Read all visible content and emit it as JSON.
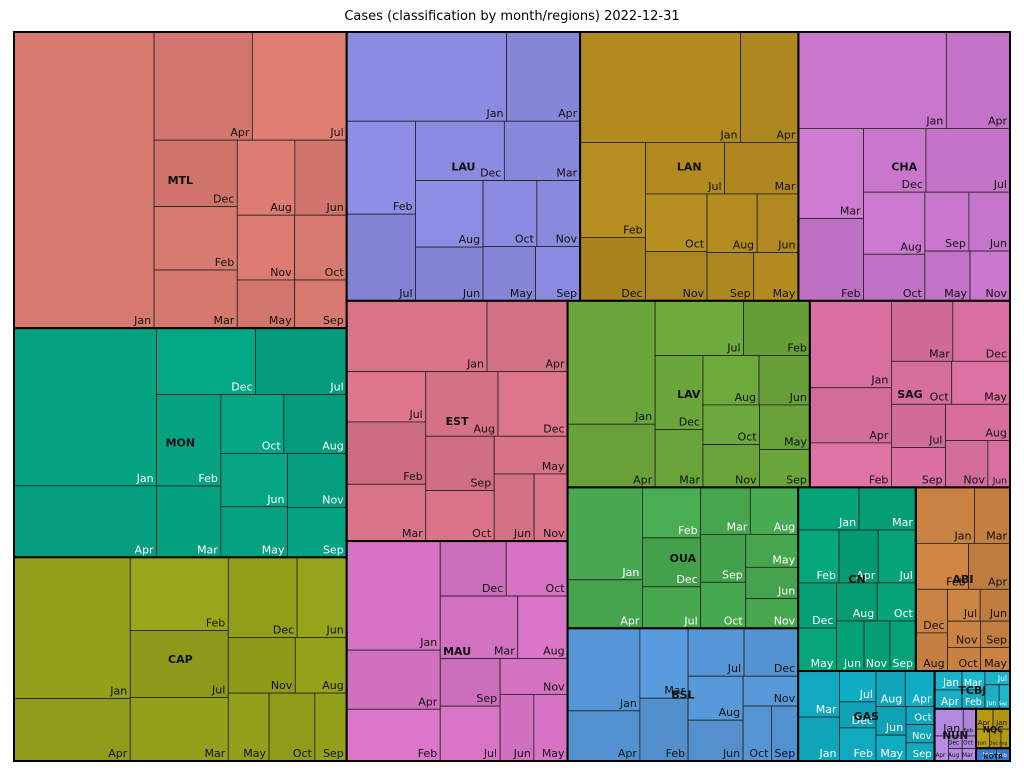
{
  "chart_data": {
    "type": "treemap",
    "title": "Cases (classification by month/regions)  2022-12-31",
    "regions": [
      {
        "name": "MTL",
        "color": "#d97a70",
        "months": [
          {
            "m": "Jan",
            "v": 4800
          },
          {
            "m": "Apr",
            "v": 1230
          },
          {
            "m": "Jul",
            "v": 1180
          },
          {
            "m": "Dec",
            "v": 640
          },
          {
            "m": "Feb",
            "v": 610
          },
          {
            "m": "Mar",
            "v": 560
          },
          {
            "m": "Aug",
            "v": 500
          },
          {
            "m": "Jun",
            "v": 450
          },
          {
            "m": "Nov",
            "v": 430
          },
          {
            "m": "Oct",
            "v": 390
          },
          {
            "m": "May",
            "v": 320
          },
          {
            "m": "Sep",
            "v": 290
          }
        ]
      },
      {
        "name": "MON",
        "color": "#05a382",
        "months": [
          {
            "m": "Jan",
            "v": 2600
          },
          {
            "m": "Apr",
            "v": 1180
          },
          {
            "m": "Dec",
            "v": 760
          },
          {
            "m": "Jul",
            "v": 700
          },
          {
            "m": "Feb",
            "v": 680
          },
          {
            "m": "Mar",
            "v": 530
          },
          {
            "m": "Oct",
            "v": 430
          },
          {
            "m": "Aug",
            "v": 430
          },
          {
            "m": "Jun",
            "v": 410
          },
          {
            "m": "May",
            "v": 390
          },
          {
            "m": "Nov",
            "v": 370
          },
          {
            "m": "Sep",
            "v": 340
          }
        ]
      },
      {
        "name": "CAP",
        "color": "#93a11a",
        "months": [
          {
            "m": "Jan",
            "v": 1900
          },
          {
            "m": "Apr",
            "v": 840
          },
          {
            "m": "Feb",
            "v": 830
          },
          {
            "m": "Jul",
            "v": 760
          },
          {
            "m": "Mar",
            "v": 720
          },
          {
            "m": "Dec",
            "v": 640
          },
          {
            "m": "Jun",
            "v": 460
          },
          {
            "m": "Nov",
            "v": 430
          },
          {
            "m": "Aug",
            "v": 330
          },
          {
            "m": "May",
            "v": 320
          },
          {
            "m": "Oct",
            "v": 360
          },
          {
            "m": "Sep",
            "v": 250
          }
        ]
      },
      {
        "name": "LAU",
        "color": "#8a8ae0",
        "months": [
          {
            "m": "Jan",
            "v": 1650
          },
          {
            "m": "Apr",
            "v": 760
          },
          {
            "m": "Feb",
            "v": 740
          },
          {
            "m": "Jul",
            "v": 690
          },
          {
            "m": "Dec",
            "v": 610
          },
          {
            "m": "Mar",
            "v": 520
          },
          {
            "m": "Aug",
            "v": 520
          },
          {
            "m": "Jun",
            "v": 420
          },
          {
            "m": "Oct",
            "v": 410
          },
          {
            "m": "Nov",
            "v": 330
          },
          {
            "m": "May",
            "v": 330
          },
          {
            "m": "Sep",
            "v": 280
          }
        ]
      },
      {
        "name": "MAU",
        "color": "#d673c4",
        "months": [
          {
            "m": "Jan",
            "v": 1180
          },
          {
            "m": "Apr",
            "v": 640
          },
          {
            "m": "Feb",
            "v": 560
          },
          {
            "m": "Dec",
            "v": 420
          },
          {
            "m": "Oct",
            "v": 390
          },
          {
            "m": "Mar",
            "v": 560
          },
          {
            "m": "Aug",
            "v": 360
          },
          {
            "m": "Sep",
            "v": 330
          },
          {
            "m": "Jul",
            "v": 380
          },
          {
            "m": "Nov",
            "v": 280
          },
          {
            "m": "Jun",
            "v": 260
          },
          {
            "m": "May",
            "v": 260
          }
        ]
      },
      {
        "name": "LAN",
        "color": "#b28b20",
        "months": [
          {
            "m": "Jan",
            "v": 2050
          },
          {
            "m": "Apr",
            "v": 740
          },
          {
            "m": "Feb",
            "v": 720
          },
          {
            "m": "Dec",
            "v": 480
          },
          {
            "m": "Jul",
            "v": 470
          },
          {
            "m": "Mar",
            "v": 440
          },
          {
            "m": "Oct",
            "v": 410
          },
          {
            "m": "Nov",
            "v": 350
          },
          {
            "m": "Aug",
            "v": 340
          },
          {
            "m": "Jun",
            "v": 280
          },
          {
            "m": "Sep",
            "v": 260
          },
          {
            "m": "May",
            "v": 250
          }
        ]
      },
      {
        "name": "EST",
        "color": "#d97388",
        "months": [
          {
            "m": "Jan",
            "v": 1150
          },
          {
            "m": "Apr",
            "v": 660
          },
          {
            "m": "Jul",
            "v": 460
          },
          {
            "m": "Feb",
            "v": 570
          },
          {
            "m": "Mar",
            "v": 520
          },
          {
            "m": "Aug",
            "v": 540
          },
          {
            "m": "Dec",
            "v": 520
          },
          {
            "m": "Sep",
            "v": 430
          },
          {
            "m": "Oct",
            "v": 400
          },
          {
            "m": "May",
            "v": 320
          },
          {
            "m": "Jun",
            "v": 310
          },
          {
            "m": "Nov",
            "v": 260
          }
        ]
      },
      {
        "name": "LAV",
        "color": "#6ba63a",
        "months": [
          {
            "m": "Jan",
            "v": 1250
          },
          {
            "m": "Apr",
            "v": 640
          },
          {
            "m": "Jul",
            "v": 560
          },
          {
            "m": "Feb",
            "v": 420
          },
          {
            "m": "Dec",
            "v": 410
          },
          {
            "m": "Mar",
            "v": 320
          },
          {
            "m": "Aug",
            "v": 320
          },
          {
            "m": "Jun",
            "v": 290
          },
          {
            "m": "Oct",
            "v": 260
          },
          {
            "m": "Nov",
            "v": 280
          },
          {
            "m": "May",
            "v": 260
          },
          {
            "m": "Sep",
            "v": 220
          }
        ]
      },
      {
        "name": "CHA",
        "color": "#c877cc",
        "months": [
          {
            "m": "Jan",
            "v": 1650
          },
          {
            "m": "Apr",
            "v": 710
          },
          {
            "m": "Mar",
            "v": 680
          },
          {
            "m": "Feb",
            "v": 620
          },
          {
            "m": "Dec",
            "v": 460
          },
          {
            "m": "Jul",
            "v": 620
          },
          {
            "m": "Aug",
            "v": 440
          },
          {
            "m": "Oct",
            "v": 330
          },
          {
            "m": "Sep",
            "v": 300
          },
          {
            "m": "Jun",
            "v": 280
          },
          {
            "m": "May",
            "v": 260
          },
          {
            "m": "Nov",
            "v": 230
          }
        ]
      },
      {
        "name": "SAG",
        "color": "#d96fa0",
        "months": [
          {
            "m": "Jan",
            "v": 820
          },
          {
            "m": "Apr",
            "v": 520
          },
          {
            "m": "Feb",
            "v": 420
          },
          {
            "m": "Mar",
            "v": 430
          },
          {
            "m": "Dec",
            "v": 400
          },
          {
            "m": "Oct",
            "v": 300
          },
          {
            "m": "May",
            "v": 290
          },
          {
            "m": "Jul",
            "v": 270
          },
          {
            "m": "Sep",
            "v": 250
          },
          {
            "m": "Aug",
            "v": 270
          },
          {
            "m": "Nov",
            "v": 230
          },
          {
            "m": "Jun",
            "v": 120
          }
        ]
      },
      {
        "name": "BSL",
        "color": "#5696d6",
        "months": [
          {
            "m": "Jan",
            "v": 690
          },
          {
            "m": "Apr",
            "v": 420
          },
          {
            "m": "Mar",
            "v": 390
          },
          {
            "m": "Feb",
            "v": 350
          },
          {
            "m": "Jul",
            "v": 310
          },
          {
            "m": "Dec",
            "v": 300
          },
          {
            "m": "Aug",
            "v": 280
          },
          {
            "m": "Jun",
            "v": 260
          },
          {
            "m": "Nov",
            "v": 190
          },
          {
            "m": "Oct",
            "v": 180
          },
          {
            "m": "Sep",
            "v": 170
          }
        ]
      },
      {
        "name": "CN",
        "color": "#05a377",
        "months": [
          {
            "m": "Jan",
            "v": 300
          },
          {
            "m": "Mar",
            "v": 280
          },
          {
            "m": "Feb",
            "v": 250
          },
          {
            "m": "Apr",
            "v": 240
          },
          {
            "m": "Jul",
            "v": 230
          },
          {
            "m": "Dec",
            "v": 200
          },
          {
            "m": "May",
            "v": 190
          },
          {
            "m": "Aug",
            "v": 180
          },
          {
            "m": "Oct",
            "v": 170
          },
          {
            "m": "Jun",
            "v": 160
          },
          {
            "m": "Nov",
            "v": 150
          },
          {
            "m": "Sep",
            "v": 150
          }
        ]
      },
      {
        "name": "OUA",
        "color": "#47a84f",
        "months": [
          {
            "m": "Jan",
            "v": 800
          },
          {
            "m": "Apr",
            "v": 420
          },
          {
            "m": "Feb",
            "v": 340
          },
          {
            "m": "Dec",
            "v": 330
          },
          {
            "m": "Jul",
            "v": 280
          },
          {
            "m": "Mar",
            "v": 270
          },
          {
            "m": "Aug",
            "v": 260
          },
          {
            "m": "Sep",
            "v": 250
          },
          {
            "m": "Oct",
            "v": 240
          },
          {
            "m": "May",
            "v": 200
          },
          {
            "m": "Jun",
            "v": 190
          },
          {
            "m": "Nov",
            "v": 180
          }
        ]
      },
      {
        "name": "ABI",
        "color": "#c98242",
        "months": [
          {
            "m": "Jan",
            "v": 380
          },
          {
            "m": "Mar",
            "v": 230
          },
          {
            "m": "Feb",
            "v": 280
          },
          {
            "m": "Apr",
            "v": 220
          },
          {
            "m": "Dec",
            "v": 160
          },
          {
            "m": "Aug",
            "v": 140
          },
          {
            "m": "Jul",
            "v": 120
          },
          {
            "m": "Jun",
            "v": 110
          },
          {
            "m": "Nov",
            "v": 100
          },
          {
            "m": "Oct",
            "v": 90
          },
          {
            "m": "Sep",
            "v": 90
          },
          {
            "m": "May",
            "v": 80
          }
        ]
      },
      {
        "name": "GAS",
        "color": "#10a9bf",
        "months": [
          {
            "m": "Mar",
            "v": 220
          },
          {
            "m": "Jan",
            "v": 210
          },
          {
            "m": "Jul",
            "v": 130
          },
          {
            "m": "Dec",
            "v": 110
          },
          {
            "m": "Feb",
            "v": 140
          },
          {
            "m": "Aug",
            "v": 120
          },
          {
            "m": "Apr",
            "v": 120
          },
          {
            "m": "Jun",
            "v": 100
          },
          {
            "m": "May",
            "v": 90
          },
          {
            "m": "Oct",
            "v": 60
          },
          {
            "m": "Nov",
            "v": 60
          },
          {
            "m": "Sep",
            "v": 60
          }
        ]
      },
      {
        "name": "TCBJ",
        "color": "#1ab3c9",
        "months": [
          {
            "m": "Jan",
            "v": 60
          },
          {
            "m": "Apr",
            "v": 60
          },
          {
            "m": "Mar",
            "v": 50
          },
          {
            "m": "Feb",
            "v": 50
          },
          {
            "m": "Jul",
            "v": 40
          },
          {
            "m": "Jun",
            "v": 40
          },
          {
            "m": "Sep",
            "v": 30
          }
        ]
      },
      {
        "name": "NUN",
        "color": "#b489e0",
        "months": [
          {
            "m": "Jan",
            "v": 90
          },
          {
            "m": "Feb",
            "v": 40
          },
          {
            "m": "Apr",
            "v": 40
          },
          {
            "m": "Dec",
            "v": 20
          },
          {
            "m": "Aug",
            "v": 20
          },
          {
            "m": "Oct",
            "v": 20
          },
          {
            "m": "Mar",
            "v": 20
          }
        ]
      },
      {
        "name": "NQC",
        "color": "#b59a10",
        "months": [
          {
            "m": "Apr",
            "v": 40
          },
          {
            "m": "Jan",
            "v": 40
          },
          {
            "m": "Jun",
            "v": 30
          },
          {
            "m": "Dec",
            "v": 25
          },
          {
            "m": "Aug",
            "v": 20
          }
        ]
      },
      {
        "name": "NOTR",
        "color": "#2d7fd6",
        "months": [
          {
            "m": "Jan",
            "v": 30
          },
          {
            "m": "Feb",
            "v": 20
          }
        ]
      }
    ]
  }
}
